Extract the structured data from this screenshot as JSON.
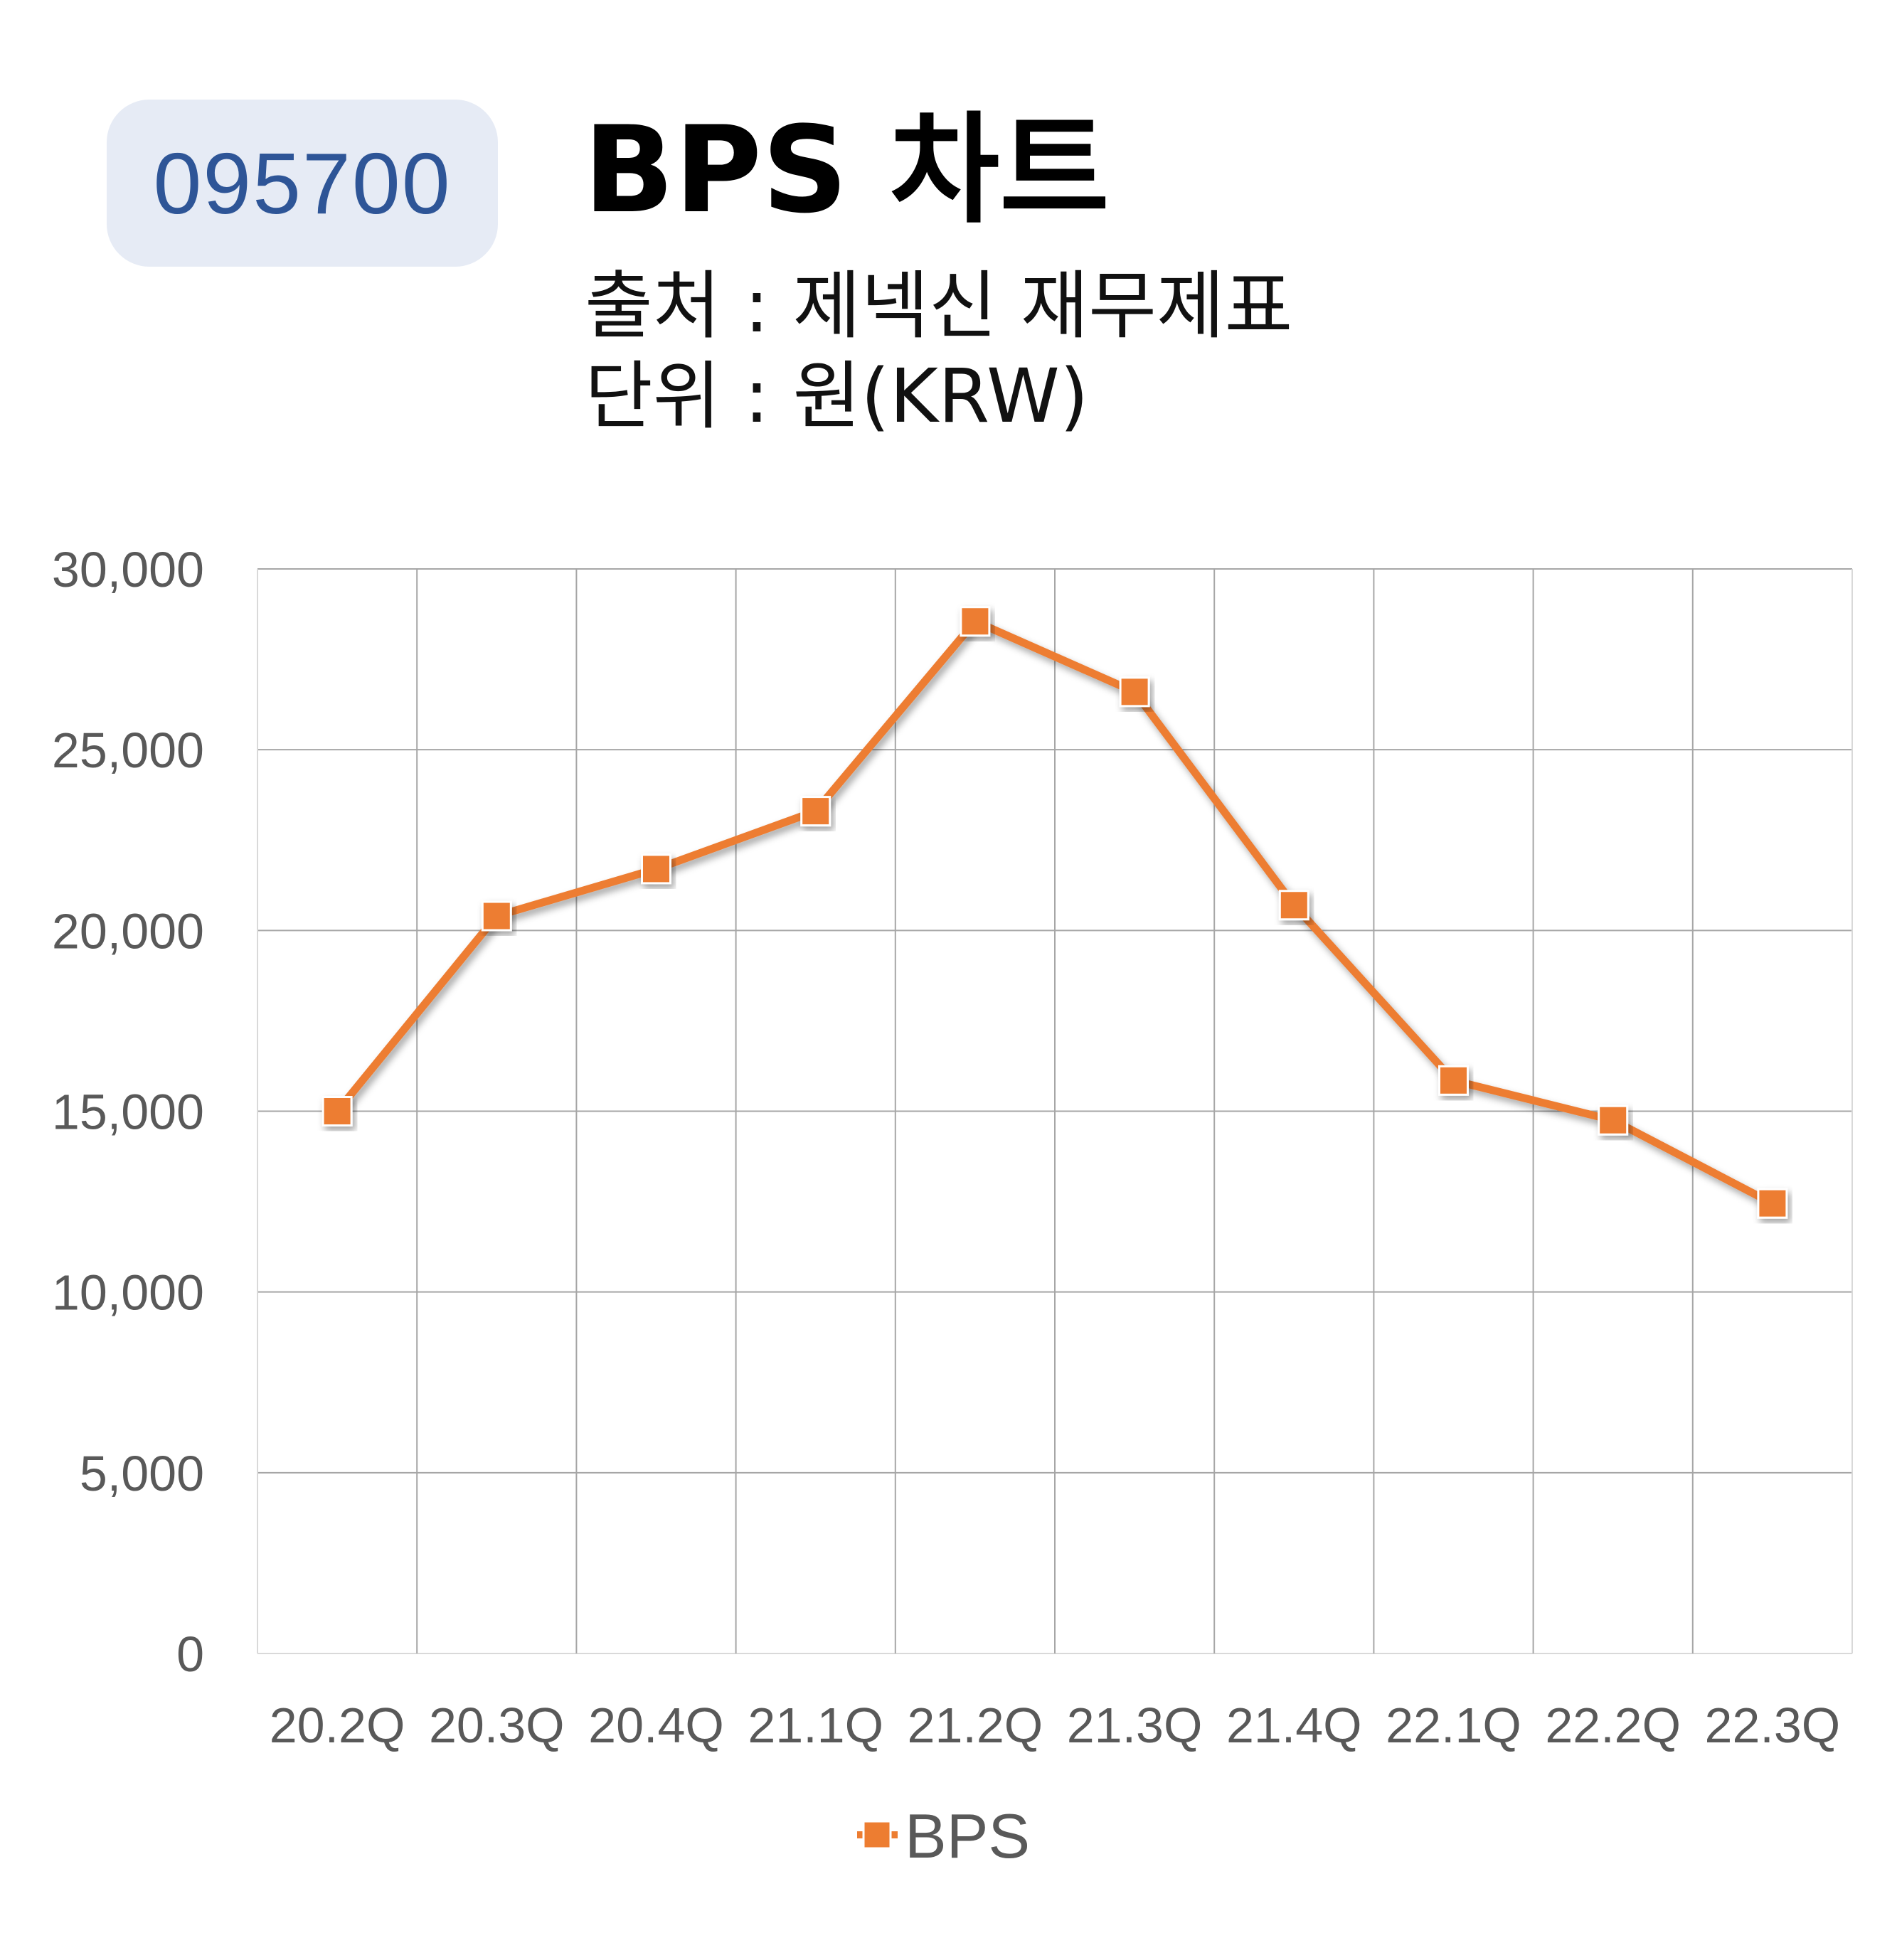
{
  "header": {
    "code": "095700",
    "title": "BPS 차트",
    "source": "출처 : 제넥신 재무제표",
    "unit": "단위 : 원(KRW)"
  },
  "colors": {
    "line": "#ed7d31",
    "badge_bg": "#e6ebf5",
    "badge_text": "#2e5597",
    "grid": "#a6a6a6",
    "tick_text": "#595959"
  },
  "chart_data": {
    "type": "line",
    "title": "BPS 차트",
    "categories": [
      "20.2Q",
      "20.3Q",
      "20.4Q",
      "21.1Q",
      "21.2Q",
      "21.3Q",
      "21.4Q",
      "22.1Q",
      "22.2Q",
      "22.3Q"
    ],
    "series": [
      {
        "name": "BPS",
        "values": [
          15000,
          20400,
          21700,
          23300,
          28550,
          26600,
          20700,
          15850,
          14750,
          12450
        ]
      }
    ],
    "ylim": [
      0,
      30000
    ],
    "yticks": [
      "0",
      "5,000",
      "10,000",
      "15,000",
      "20,000",
      "25,000",
      "30,000"
    ],
    "ytick_values": [
      0,
      5000,
      10000,
      15000,
      20000,
      25000,
      30000
    ],
    "grid": true,
    "legend": "bottom-center",
    "marker": "square"
  }
}
